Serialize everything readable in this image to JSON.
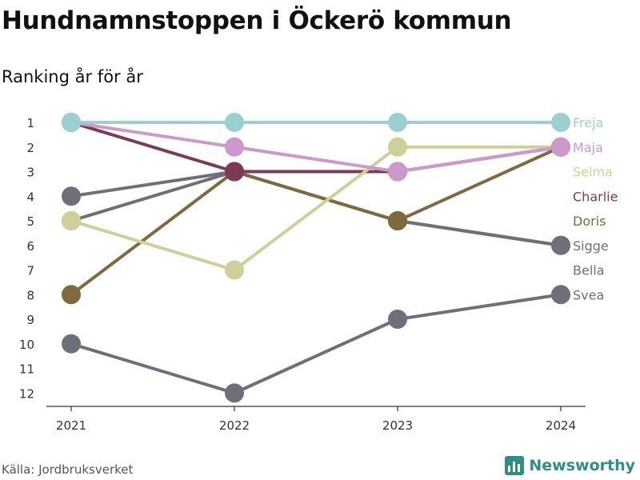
{
  "header": {
    "title": "Hundnamnstoppen i Öckerö kommun",
    "subtitle": "Ranking år för år"
  },
  "footer": {
    "source": "Källa: Jordbruksverket",
    "brand": "Newsworthy"
  },
  "colors": {
    "grey": "#6f6f79",
    "freja": "#9ccfcf",
    "maja": "#cc99cc",
    "selma": "#cfcf99",
    "charlie": "#7d3a55",
    "doris": "#7f6a40",
    "brand": "#2e8f86"
  },
  "chart_data": {
    "type": "line",
    "x": [
      "2021",
      "2022",
      "2023",
      "2024"
    ],
    "y_ticks": [
      1,
      2,
      3,
      4,
      5,
      6,
      7,
      8,
      9,
      10,
      11,
      12
    ],
    "y_inverted": true,
    "ylim": [
      1,
      12
    ],
    "legend": "right end labels",
    "series": [
      {
        "name": "Svea",
        "color": "#6f6f79",
        "values": [
          10,
          12,
          9,
          8
        ]
      },
      {
        "name": "Bella",
        "color": "#6f6f79",
        "values": [
          4,
          3,
          5,
          6
        ]
      },
      {
        "name": "Sigge",
        "color": "#6f6f79",
        "values": [
          5,
          3,
          5,
          6
        ]
      },
      {
        "name": "Doris",
        "color": "#7f6a40",
        "values": [
          8,
          3,
          5,
          2
        ]
      },
      {
        "name": "Charlie",
        "color": "#7d3a55",
        "values": [
          1,
          3,
          3,
          2
        ]
      },
      {
        "name": "Selma",
        "color": "#cfcf99",
        "values": [
          5,
          7,
          2,
          2
        ]
      },
      {
        "name": "Maja",
        "color": "#cc99cc",
        "values": [
          1,
          2,
          3,
          2
        ]
      },
      {
        "name": "Freja",
        "color": "#9ccfcf",
        "values": [
          1,
          1,
          1,
          1
        ]
      }
    ],
    "labels": [
      {
        "name": "Freja",
        "color": "#9ccfcf",
        "rank": 1
      },
      {
        "name": "Maja",
        "color": "#cc99cc",
        "rank": 2
      },
      {
        "name": "Selma",
        "color": "#cfcf99",
        "rank": 3
      },
      {
        "name": "Charlie",
        "color": "#7d3a55",
        "rank": 4
      },
      {
        "name": "Doris",
        "color": "#7f6a40",
        "rank": 5
      },
      {
        "name": "Sigge",
        "color": "#6f6f79",
        "rank": 6
      },
      {
        "name": "Bella",
        "color": "#6f6f79",
        "rank": 7
      },
      {
        "name": "Svea",
        "color": "#6f6f79",
        "rank": 8
      }
    ]
  }
}
